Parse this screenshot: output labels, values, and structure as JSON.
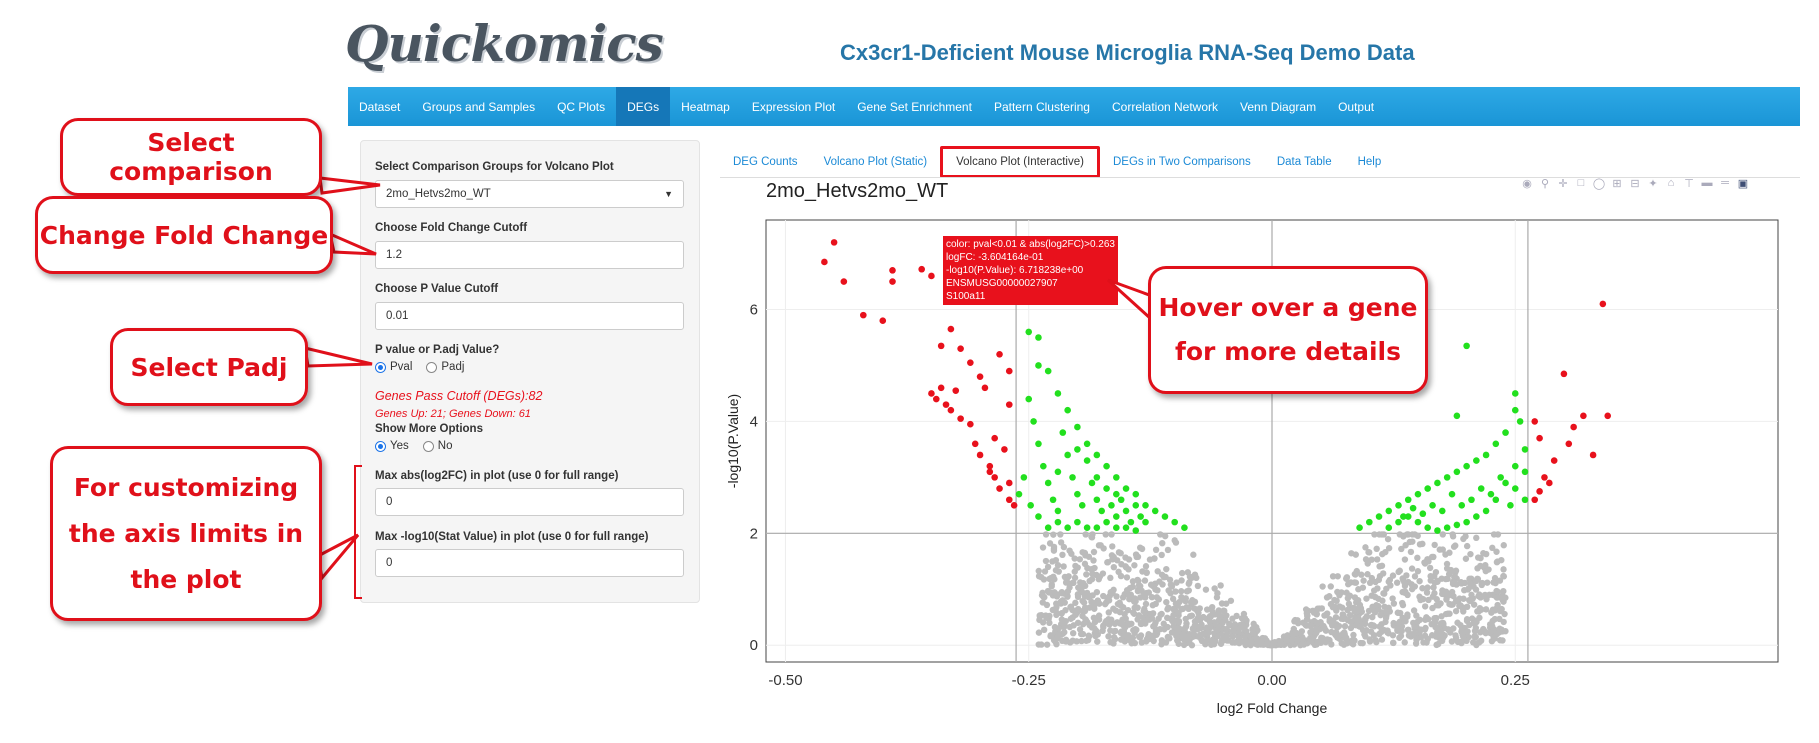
{
  "app": {
    "logo": "Quickomics",
    "title": "Cx3cr1-Deficient Mouse Microglia RNA-Seq Demo Data"
  },
  "nav": {
    "items": [
      "Dataset",
      "Groups and Samples",
      "QC Plots",
      "DEGs",
      "Heatmap",
      "Expression Plot",
      "Gene Set Enrichment",
      "Pattern Clustering",
      "Correlation Network",
      "Venn Diagram",
      "Output"
    ],
    "active": "DEGs"
  },
  "sidebar": {
    "comparison_label": "Select Comparison Groups for Volcano Plot",
    "comparison_value": "2mo_Hetvs2mo_WT",
    "fc_label": "Choose Fold Change Cutoff",
    "fc_value": "1.2",
    "p_label": "Choose P Value Cutoff",
    "p_value": "0.01",
    "ptype_label": "P value or P.adj Value?",
    "ptype_options": [
      "Pval",
      "Padj"
    ],
    "ptype_selected": "Pval",
    "degs_pass": "Genes Pass Cutoff (DEGs):82",
    "genes_updown": "Genes Up: 21; Genes Down: 61",
    "more_label": "Show More Options",
    "more_options": [
      "Yes",
      "No"
    ],
    "more_selected": "Yes",
    "max_fc_label": "Max abs(log2FC) in plot (use 0 for full range)",
    "max_fc_value": "0",
    "max_stat_label": "Max -log10(Stat Value) in plot (use 0 for full range)",
    "max_stat_value": "0"
  },
  "tabs": {
    "items": [
      "DEG Counts",
      "Volcano Plot (Static)",
      "Volcano Plot (Interactive)",
      "DEGs in Two Comparisons",
      "Data Table",
      "Help"
    ],
    "active": "Volcano Plot (Interactive)"
  },
  "plot": {
    "title": "2mo_Hetvs2mo_WT",
    "modebar_icons": [
      "camera-icon",
      "zoom-icon",
      "pan-icon",
      "box-select-icon",
      "lasso-icon",
      "zoom-in-icon",
      "zoom-out-icon",
      "autoscale-icon",
      "reset-axes-icon",
      "spike-lines-icon",
      "hover-closest-icon",
      "hover-compare-icon",
      "plotly-logo-icon"
    ],
    "tooltip": {
      "lines": [
        "color: pval<0.01 & abs(log2FC)>0.263",
        "logFC: -3.604164e-01",
        "-log10(P.Value): 6.718238e+00",
        "ENSMUSG00000027907",
        "S100a11"
      ]
    }
  },
  "chart_data": {
    "type": "scatter",
    "title": "2mo_Hetvs2mo_WT",
    "xlabel": "log2 Fold Change",
    "ylabel": "-log10(P.Value)",
    "xlim": [
      -0.52,
      0.52
    ],
    "ylim": [
      -0.3,
      7.6
    ],
    "x_ticks": [
      "-0.50",
      "-0.25",
      "0.00",
      "0.25"
    ],
    "y_ticks": [
      "0",
      "2",
      "4",
      "6"
    ],
    "x_tick_values": [
      -0.5,
      -0.25,
      0,
      0.25
    ],
    "y_tick_values": [
      0,
      2,
      4,
      6
    ],
    "cutoff_lines": {
      "x": [
        -0.263,
        0.263
      ],
      "y": 2
    },
    "colors": {
      "significant": "#e8111c",
      "pass_fc_only": "#22e01e",
      "not_significant": "#bbbbbb"
    },
    "series": [
      {
        "color_group": "significant",
        "points": [
          [
            -0.46,
            6.85
          ],
          [
            -0.45,
            7.2
          ],
          [
            -0.44,
            6.5
          ],
          [
            -0.42,
            5.9
          ],
          [
            -0.4,
            5.8
          ],
          [
            -0.39,
            6.5
          ],
          [
            -0.39,
            6.7
          ],
          [
            -0.36,
            6.72
          ],
          [
            -0.35,
            6.6
          ],
          [
            -0.34,
            5.35
          ],
          [
            -0.33,
            5.65
          ],
          [
            -0.35,
            4.5
          ],
          [
            -0.345,
            4.4
          ],
          [
            -0.34,
            4.6
          ],
          [
            -0.335,
            4.3
          ],
          [
            -0.33,
            4.2
          ],
          [
            -0.325,
            4.55
          ],
          [
            -0.32,
            4.05
          ],
          [
            -0.31,
            3.95
          ],
          [
            -0.3,
            3.4
          ],
          [
            -0.305,
            3.6
          ],
          [
            -0.32,
            5.3
          ],
          [
            -0.31,
            5.05
          ],
          [
            -0.3,
            4.8
          ],
          [
            -0.295,
            4.6
          ],
          [
            -0.29,
            3.2
          ],
          [
            -0.285,
            3.0
          ],
          [
            -0.28,
            2.8
          ],
          [
            -0.275,
            3.5
          ],
          [
            -0.27,
            2.9
          ],
          [
            -0.27,
            2.6
          ],
          [
            -0.265,
            2.5
          ],
          [
            -0.28,
            5.2
          ],
          [
            -0.27,
            4.9
          ],
          [
            -0.27,
            4.3
          ],
          [
            -0.285,
            3.7
          ],
          [
            -0.29,
            3.1
          ],
          [
            0.27,
            2.6
          ],
          [
            0.275,
            2.75
          ],
          [
            0.28,
            3.0
          ],
          [
            0.285,
            2.9
          ],
          [
            0.29,
            3.3
          ],
          [
            0.3,
            4.85
          ],
          [
            0.305,
            3.6
          ],
          [
            0.31,
            3.9
          ],
          [
            0.32,
            4.1
          ],
          [
            0.33,
            3.4
          ],
          [
            0.345,
            4.1
          ],
          [
            0.34,
            6.1
          ],
          [
            0.27,
            4.0
          ],
          [
            0.275,
            3.7
          ]
        ]
      },
      {
        "color_group": "pass_fc_only",
        "points": [
          [
            -0.25,
            5.6
          ],
          [
            -0.24,
            5.5
          ],
          [
            -0.23,
            4.9
          ],
          [
            -0.22,
            4.5
          ],
          [
            -0.21,
            4.2
          ],
          [
            -0.2,
            3.9
          ],
          [
            -0.19,
            3.6
          ],
          [
            -0.18,
            3.4
          ],
          [
            -0.17,
            3.2
          ],
          [
            -0.16,
            3.0
          ],
          [
            -0.15,
            2.8
          ],
          [
            -0.14,
            2.7
          ],
          [
            -0.13,
            2.5
          ],
          [
            -0.12,
            2.4
          ],
          [
            -0.11,
            2.3
          ],
          [
            -0.1,
            2.2
          ],
          [
            -0.09,
            2.1
          ],
          [
            -0.25,
            4.4
          ],
          [
            -0.245,
            4.0
          ],
          [
            -0.24,
            3.6
          ],
          [
            -0.235,
            3.2
          ],
          [
            -0.23,
            2.9
          ],
          [
            -0.225,
            2.6
          ],
          [
            -0.22,
            2.4
          ],
          [
            -0.215,
            3.8
          ],
          [
            -0.21,
            3.4
          ],
          [
            -0.205,
            3.0
          ],
          [
            -0.2,
            2.7
          ],
          [
            -0.195,
            2.5
          ],
          [
            -0.19,
            3.3
          ],
          [
            -0.185,
            2.9
          ],
          [
            -0.18,
            2.6
          ],
          [
            -0.175,
            2.4
          ],
          [
            -0.17,
            2.8
          ],
          [
            -0.165,
            2.5
          ],
          [
            -0.16,
            2.3
          ],
          [
            -0.155,
            2.6
          ],
          [
            -0.15,
            2.4
          ],
          [
            -0.145,
            2.2
          ],
          [
            -0.14,
            2.5
          ],
          [
            -0.135,
            2.3
          ],
          [
            -0.13,
            2.2
          ],
          [
            -0.255,
            3.0
          ],
          [
            -0.26,
            2.7
          ],
          [
            -0.248,
            2.5
          ],
          [
            -0.24,
            2.3
          ],
          [
            -0.23,
            2.1
          ],
          [
            -0.22,
            2.2
          ],
          [
            -0.21,
            2.1
          ],
          [
            -0.2,
            2.2
          ],
          [
            -0.19,
            2.1
          ],
          [
            -0.18,
            2.1
          ],
          [
            -0.17,
            2.2
          ],
          [
            -0.16,
            2.1
          ],
          [
            -0.15,
            2.1
          ],
          [
            -0.14,
            2.05
          ],
          [
            -0.24,
            5.0
          ],
          [
            -0.22,
            3.1
          ],
          [
            -0.2,
            3.5
          ],
          [
            -0.18,
            3.0
          ],
          [
            -0.16,
            2.7
          ],
          [
            0.09,
            2.1
          ],
          [
            0.1,
            2.2
          ],
          [
            0.11,
            2.3
          ],
          [
            0.12,
            2.4
          ],
          [
            0.13,
            2.5
          ],
          [
            0.14,
            2.6
          ],
          [
            0.15,
            2.7
          ],
          [
            0.16,
            2.8
          ],
          [
            0.17,
            2.9
          ],
          [
            0.18,
            3.0
          ],
          [
            0.19,
            3.1
          ],
          [
            0.2,
            3.2
          ],
          [
            0.21,
            3.3
          ],
          [
            0.22,
            3.4
          ],
          [
            0.23,
            3.6
          ],
          [
            0.24,
            3.8
          ],
          [
            0.25,
            4.5
          ],
          [
            0.255,
            4.0
          ],
          [
            0.26,
            3.5
          ],
          [
            0.25,
            3.2
          ],
          [
            0.24,
            2.9
          ],
          [
            0.23,
            2.6
          ],
          [
            0.22,
            2.4
          ],
          [
            0.21,
            2.3
          ],
          [
            0.2,
            2.2
          ],
          [
            0.19,
            2.15
          ],
          [
            0.18,
            2.1
          ],
          [
            0.17,
            2.05
          ],
          [
            0.16,
            2.1
          ],
          [
            0.15,
            2.2
          ],
          [
            0.14,
            2.3
          ],
          [
            0.13,
            2.2
          ],
          [
            0.12,
            2.1
          ],
          [
            0.245,
            2.5
          ],
          [
            0.25,
            2.8
          ],
          [
            0.26,
            2.6
          ],
          [
            0.235,
            3.0
          ],
          [
            0.225,
            2.7
          ],
          [
            0.215,
            2.8
          ],
          [
            0.205,
            2.6
          ],
          [
            0.195,
            2.5
          ],
          [
            0.185,
            2.7
          ],
          [
            0.175,
            2.4
          ],
          [
            0.165,
            2.5
          ],
          [
            0.155,
            2.35
          ],
          [
            0.145,
            2.45
          ],
          [
            0.135,
            2.3
          ],
          [
            0.2,
            5.35
          ],
          [
            0.19,
            4.1
          ],
          [
            0.25,
            4.2
          ],
          [
            0.26,
            3.1
          ]
        ]
      },
      {
        "color_group": "not_significant",
        "envelope": "dense V-shaped cloud of non-significant genes around the origin, bounded above by -log10(P)=2 for |log2FC|>0.08"
      }
    ]
  },
  "annotations": {
    "select_comparison": "Select comparison",
    "change_fc": "Change Fold Change",
    "select_padj": "Select Padj",
    "customize_axis": [
      "For customizing",
      "the axis limits in",
      "the plot"
    ],
    "hover": [
      "Hover over a gene",
      "for more details"
    ]
  }
}
